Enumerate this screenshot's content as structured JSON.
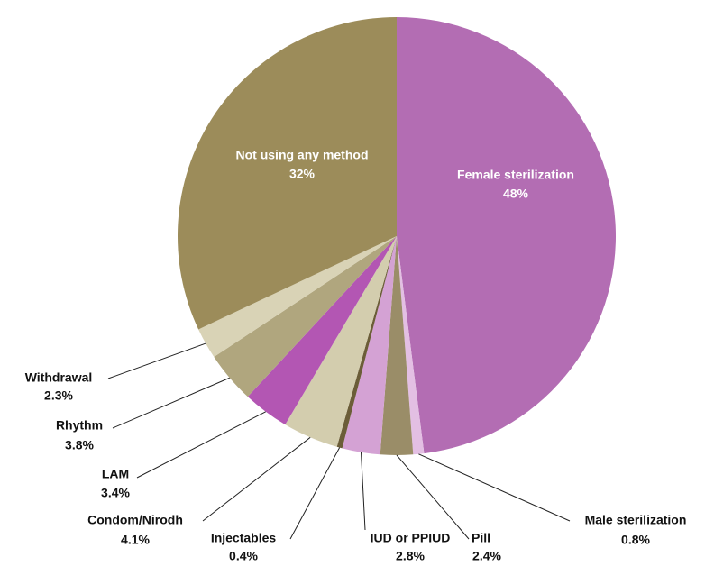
{
  "chart_data": {
    "type": "pie",
    "categories": [
      "Female sterilization",
      "Male sterilization",
      "Pill",
      "IUD or PPIUD",
      "Injectables",
      "Condom/Nirodh",
      "LAM",
      "Rhythm",
      "Withdrawal",
      "Not using any method"
    ],
    "values": [
      48,
      0.8,
      2.4,
      2.8,
      0.4,
      4.1,
      3.4,
      3.8,
      2.3,
      32
    ],
    "value_labels": [
      "48%",
      "0.8%",
      "2.4%",
      "2.8%",
      "0.4%",
      "4.1%",
      "3.4%",
      "3.8%",
      "2.3%",
      "32%"
    ],
    "colors": [
      "#b36db3",
      "#e3bfe3",
      "#9a8d68",
      "#d4a2d4",
      "#6b5d38",
      "#d3cdae",
      "#b356b3",
      "#b0a67e",
      "#d9d3b6",
      "#9c8c5a"
    ]
  }
}
